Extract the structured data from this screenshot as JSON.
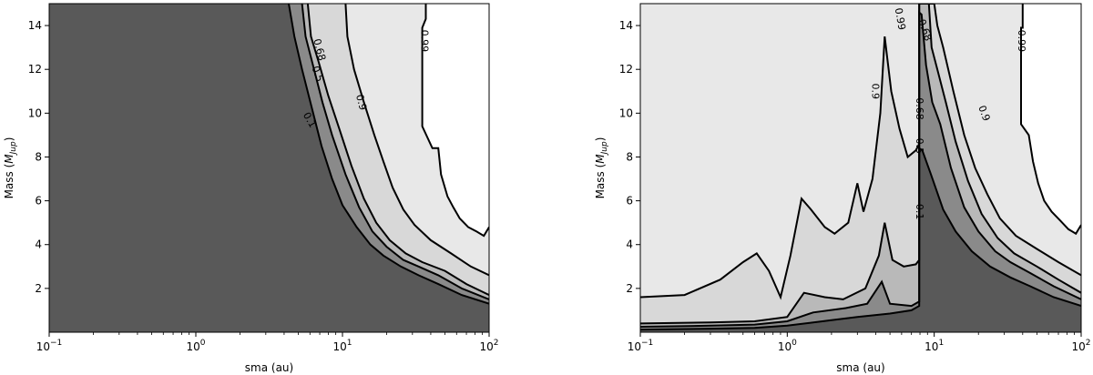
{
  "chart_data": [
    {
      "type": "contour",
      "xlabel": "sma (au)",
      "ylabel_main": "Mass (",
      "ylabel_sub": "Jup",
      "ylabel_close": ")",
      "xscale": "log",
      "xlim": [
        0.1,
        100
      ],
      "ylim": [
        0,
        15
      ],
      "x_ticks": [
        {
          "base": "10",
          "exp": "−1",
          "value": 0.1
        },
        {
          "base": "10",
          "exp": "0",
          "value": 1
        },
        {
          "base": "10",
          "exp": "1",
          "value": 10
        },
        {
          "base": "10",
          "exp": "2",
          "value": 100
        }
      ],
      "y_ticks": [
        "2",
        "4",
        "6",
        "8",
        "10",
        "12",
        "14"
      ],
      "fill_colors": [
        "#595959",
        "#8a8a8a",
        "#b9b9b9",
        "#d8d8d8",
        "#e8e8e8",
        "#ffffff"
      ],
      "levels": [
        {
          "level": "0.1",
          "points": [
            [
              4.3,
              15
            ],
            [
              4.7,
              13.5
            ],
            [
              5.3,
              12
            ],
            [
              6.2,
              10.2
            ],
            [
              7.2,
              8.5
            ],
            [
              8.5,
              7
            ],
            [
              10,
              5.8
            ],
            [
              12.5,
              4.8
            ],
            [
              15.5,
              4.0
            ],
            [
              19,
              3.5
            ],
            [
              25,
              3.0
            ],
            [
              33,
              2.6
            ],
            [
              45,
              2.2
            ],
            [
              65,
              1.7
            ],
            [
              100,
              1.3
            ]
          ]
        },
        {
          "level": "0.5",
          "points": [
            [
              5.3,
              15
            ],
            [
              5.6,
              13.5
            ],
            [
              6.4,
              12
            ],
            [
              7.3,
              10.5
            ],
            [
              8.5,
              9
            ],
            [
              10.5,
              7.2
            ],
            [
              13,
              5.7
            ],
            [
              16,
              4.6
            ],
            [
              20,
              3.9
            ],
            [
              26,
              3.3
            ],
            [
              33,
              3.0
            ],
            [
              45,
              2.6
            ],
            [
              65,
              2.0
            ],
            [
              100,
              1.5
            ]
          ]
        },
        {
          "level": "0.68",
          "points": [
            [
              5.8,
              15
            ],
            [
              6.1,
              13.5
            ],
            [
              6.9,
              12.3
            ],
            [
              8,
              10.8
            ],
            [
              9.5,
              9.3
            ],
            [
              11.5,
              7.6
            ],
            [
              14,
              6.1
            ],
            [
              17,
              5
            ],
            [
              21,
              4.2
            ],
            [
              27,
              3.6
            ],
            [
              35,
              3.2
            ],
            [
              50,
              2.8
            ],
            [
              70,
              2.2
            ],
            [
              100,
              1.7
            ]
          ]
        },
        {
          "level": "0.9",
          "points": [
            [
              10.5,
              15
            ],
            [
              10.8,
              13.5
            ],
            [
              12,
              12
            ],
            [
              14,
              10.5
            ],
            [
              16.5,
              9
            ],
            [
              19,
              7.8
            ],
            [
              22,
              6.6
            ],
            [
              26,
              5.6
            ],
            [
              31,
              4.9
            ],
            [
              40,
              4.2
            ],
            [
              55,
              3.6
            ],
            [
              75,
              3.0
            ],
            [
              100,
              2.6
            ]
          ]
        },
        {
          "level": "0.99",
          "points": [
            [
              37,
              15
            ],
            [
              37,
              14.3
            ],
            [
              35,
              13.9
            ],
            [
              35,
              9.4
            ],
            [
              41,
              8.4
            ],
            [
              45,
              8.4
            ],
            [
              47,
              7.2
            ],
            [
              52,
              6.2
            ],
            [
              57,
              5.7
            ],
            [
              63,
              5.2
            ],
            [
              72,
              4.8
            ],
            [
              82,
              4.6
            ],
            [
              92,
              4.4
            ],
            [
              100,
              4.8
            ]
          ]
        }
      ],
      "labels": [
        {
          "text": "0.68",
          "at": [
            7.0,
            12.9
          ],
          "angle": 75
        },
        {
          "text": "0.5",
          "at": [
            6.8,
            11.8
          ],
          "angle": 70
        },
        {
          "text": "0.1",
          "at": [
            6.0,
            9.7
          ],
          "angle": 60
        },
        {
          "text": "0.9",
          "at": [
            13.5,
            10.5
          ],
          "angle": 75
        },
        {
          "text": "0.99",
          "at": [
            36.5,
            13.3
          ],
          "angle": 90
        }
      ]
    },
    {
      "type": "contour",
      "xlabel": "sma (au)",
      "ylabel_main": "Mass (",
      "ylabel_sub": "Jup",
      "ylabel_close": ")",
      "xscale": "log",
      "xlim": [
        0.1,
        100
      ],
      "ylim": [
        0,
        15
      ],
      "x_ticks": [
        {
          "base": "10",
          "exp": "−1",
          "value": 0.1
        },
        {
          "base": "10",
          "exp": "0",
          "value": 1
        },
        {
          "base": "10",
          "exp": "1",
          "value": 10
        },
        {
          "base": "10",
          "exp": "2",
          "value": 100
        }
      ],
      "y_ticks": [
        "2",
        "4",
        "6",
        "8",
        "10",
        "12",
        "14"
      ],
      "fill_colors": [
        "#595959",
        "#8a8a8a",
        "#b9b9b9",
        "#d8d8d8",
        "#e8e8e8",
        "#ffffff"
      ],
      "levels": [
        {
          "level": "0.1",
          "points": [
            [
              0.1,
              0.12
            ],
            [
              0.3,
              0.16
            ],
            [
              0.6,
              0.2
            ],
            [
              1,
              0.3
            ],
            [
              2,
              0.55
            ],
            [
              3,
              0.7
            ],
            [
              5,
              0.85
            ],
            [
              7,
              1.0
            ],
            [
              7.9,
              1.2
            ],
            [
              7.9,
              8.4
            ],
            [
              8.3,
              8.3
            ],
            [
              9.5,
              7.2
            ],
            [
              11.5,
              5.6
            ],
            [
              14,
              4.6
            ],
            [
              18,
              3.7
            ],
            [
              24,
              3.0
            ],
            [
              33,
              2.5
            ],
            [
              45,
              2.1
            ],
            [
              65,
              1.6
            ],
            [
              100,
              1.2
            ]
          ]
        },
        {
          "level": "0.5",
          "points": [
            [
              0.1,
              0.25
            ],
            [
              0.3,
              0.3
            ],
            [
              0.6,
              0.35
            ],
            [
              1,
              0.5
            ],
            [
              1.5,
              0.9
            ],
            [
              2.5,
              1.1
            ],
            [
              3.5,
              1.3
            ],
            [
              4.4,
              2.3
            ],
            [
              5,
              1.3
            ],
            [
              7,
              1.2
            ],
            [
              7.9,
              1.4
            ],
            [
              7.9,
              14.6
            ],
            [
              8.2,
              14.5
            ],
            [
              8.8,
              12.2
            ],
            [
              9.7,
              10.5
            ],
            [
              11,
              9.5
            ],
            [
              13,
              7.5
            ],
            [
              16,
              5.7
            ],
            [
              20,
              4.6
            ],
            [
              26,
              3.7
            ],
            [
              33,
              3.2
            ],
            [
              45,
              2.7
            ],
            [
              65,
              2.1
            ],
            [
              100,
              1.5
            ]
          ]
        },
        {
          "level": "0.68",
          "points": [
            [
              0.1,
              0.4
            ],
            [
              0.3,
              0.45
            ],
            [
              0.6,
              0.5
            ],
            [
              1,
              0.7
            ],
            [
              1.3,
              1.8
            ],
            [
              1.8,
              1.6
            ],
            [
              2.4,
              1.5
            ],
            [
              3.4,
              2.0
            ],
            [
              4.2,
              3.5
            ],
            [
              4.6,
              5.0
            ],
            [
              5.2,
              3.3
            ],
            [
              6.2,
              3.0
            ],
            [
              7.5,
              3.1
            ],
            [
              7.9,
              3.3
            ],
            [
              7.9,
              15
            ],
            [
              9.2,
              15
            ],
            [
              9.6,
              13
            ],
            [
              10.5,
              12
            ],
            [
              12,
              10.5
            ],
            [
              14,
              8.7
            ],
            [
              17,
              6.9
            ],
            [
              21,
              5.4
            ],
            [
              27,
              4.3
            ],
            [
              35,
              3.6
            ],
            [
              50,
              3.0
            ],
            [
              70,
              2.4
            ],
            [
              100,
              1.8
            ]
          ]
        },
        {
          "level": "0.9",
          "points": [
            [
              0.1,
              1.6
            ],
            [
              0.2,
              1.7
            ],
            [
              0.35,
              2.4
            ],
            [
              0.5,
              3.2
            ],
            [
              0.62,
              3.6
            ],
            [
              0.75,
              2.8
            ],
            [
              0.9,
              1.6
            ],
            [
              1.05,
              3.5
            ],
            [
              1.25,
              6.1
            ],
            [
              1.45,
              5.6
            ],
            [
              1.8,
              4.8
            ],
            [
              2.1,
              4.5
            ],
            [
              2.6,
              5.0
            ],
            [
              3.0,
              6.8
            ],
            [
              3.3,
              5.5
            ],
            [
              3.8,
              7.0
            ],
            [
              4.3,
              10
            ],
            [
              4.6,
              13.5
            ],
            [
              5.1,
              11
            ],
            [
              5.8,
              9.3
            ],
            [
              6.6,
              8.0
            ],
            [
              7.5,
              8.3
            ],
            [
              7.9,
              8.6
            ],
            [
              7.9,
              15
            ],
            [
              10,
              15
            ],
            [
              10.5,
              14
            ],
            [
              11.5,
              13
            ],
            [
              13.5,
              11
            ],
            [
              16,
              9
            ],
            [
              19,
              7.5
            ],
            [
              23,
              6.3
            ],
            [
              28,
              5.2
            ],
            [
              36,
              4.4
            ],
            [
              50,
              3.8
            ],
            [
              70,
              3.2
            ],
            [
              100,
              2.6
            ]
          ]
        },
        {
          "level": "0.99",
          "points": [
            [
              40,
              15
            ],
            [
              40,
              13.9
            ],
            [
              39,
              13.9
            ],
            [
              39,
              9.5
            ],
            [
              44,
              9.0
            ],
            [
              47,
              7.8
            ],
            [
              51,
              6.8
            ],
            [
              56,
              6.0
            ],
            [
              63,
              5.5
            ],
            [
              72,
              5.1
            ],
            [
              82,
              4.7
            ],
            [
              92,
              4.5
            ],
            [
              100,
              4.9
            ]
          ]
        }
      ],
      "labels": [
        {
          "text": "0.99",
          "at": [
            5.9,
            14.3
          ],
          "angle": 80
        },
        {
          "text": "0.68",
          "at": [
            8.7,
            13.8
          ],
          "angle": 70
        },
        {
          "text": "0.9",
          "at": [
            4.0,
            11.0
          ],
          "angle": 90
        },
        {
          "text": "0.68",
          "at": [
            8.0,
            10.2
          ],
          "angle": 90
        },
        {
          "text": "0.5",
          "at": [
            8.0,
            8.5
          ],
          "angle": 90
        },
        {
          "text": "0.1",
          "at": [
            8.0,
            5.5
          ],
          "angle": 90
        },
        {
          "text": "0.9",
          "at": [
            22.0,
            10.0
          ],
          "angle": 70
        },
        {
          "text": "0.99",
          "at": [
            39.5,
            13.3
          ],
          "angle": 90
        }
      ]
    }
  ]
}
